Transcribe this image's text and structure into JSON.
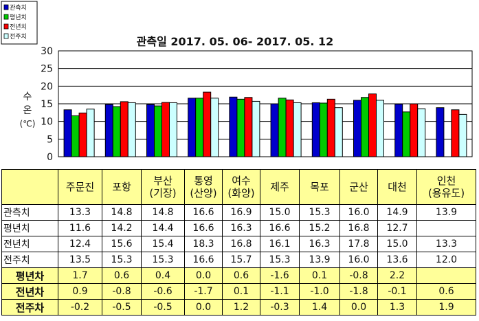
{
  "chart_data": {
    "type": "bar",
    "title": "관측일 2017. 05. 06- 2017. 05. 12",
    "ylabel_lines": [
      "수",
      "온",
      "(℃)"
    ],
    "ylim": [
      0,
      30
    ],
    "yticks": [
      "0",
      "5",
      "10",
      "15",
      "20",
      "25",
      "30"
    ],
    "grid": true,
    "legend_position": "top-left",
    "categories": [
      "주문진",
      "포항",
      "부산|(기장)",
      "통영|(산양)",
      "여수|(화양)",
      "제주",
      "목포",
      "군산",
      "대천",
      "인천|(용유도)"
    ],
    "series": [
      {
        "name": "관측치",
        "color": "#0000cc",
        "values": [
          13.3,
          14.8,
          14.8,
          16.6,
          16.9,
          15.0,
          15.3,
          16.0,
          14.9,
          13.9
        ]
      },
      {
        "name": "평년치",
        "color": "#00cc00",
        "values": [
          11.6,
          14.2,
          14.4,
          16.6,
          16.3,
          16.6,
          15.2,
          16.8,
          12.7,
          null
        ]
      },
      {
        "name": "전년치",
        "color": "#ff0000",
        "values": [
          12.4,
          15.6,
          15.4,
          18.3,
          16.8,
          16.1,
          16.3,
          17.8,
          15.0,
          13.3
        ]
      },
      {
        "name": "전주치",
        "color": "#ccffff",
        "values": [
          13.5,
          15.3,
          15.3,
          16.6,
          15.7,
          15.3,
          13.9,
          16.0,
          13.6,
          12.0
        ]
      }
    ]
  },
  "table": {
    "header": [
      "주문진",
      "포항",
      "부산|(기장)",
      "통영|(산양)",
      "여수|(화양)",
      "제주",
      "목포",
      "군산",
      "대천",
      "인천|(용유도)"
    ],
    "rows": [
      {
        "label": "관측치",
        "cls": "obs",
        "cells": [
          "13.3",
          "14.8",
          "14.8",
          "16.6",
          "16.9",
          "15.0",
          "15.3",
          "16.0",
          "14.9",
          "13.9"
        ]
      },
      {
        "label": "평년치",
        "cls": "obs",
        "cells": [
          "11.6",
          "14.2",
          "14.4",
          "16.6",
          "16.3",
          "16.6",
          "15.2",
          "16.8",
          "12.7",
          ""
        ]
      },
      {
        "label": "전년치",
        "cls": "obs",
        "cells": [
          "12.4",
          "15.6",
          "15.4",
          "18.3",
          "16.8",
          "16.1",
          "16.3",
          "17.8",
          "15.0",
          "13.3"
        ]
      },
      {
        "label": "전주치",
        "cls": "obs",
        "cells": [
          "13.5",
          "15.3",
          "15.3",
          "16.6",
          "15.7",
          "15.3",
          "13.9",
          "16.0",
          "13.6",
          "12.0"
        ]
      },
      {
        "label": "평년차",
        "cls": "diff",
        "cells": [
          "1.7",
          "0.6",
          "0.4",
          "0.0",
          "0.6",
          "-1.6",
          "0.1",
          "-0.8",
          "2.2",
          ""
        ]
      },
      {
        "label": "전년차",
        "cls": "diff",
        "cells": [
          "0.9",
          "-0.8",
          "-0.6",
          "-1.7",
          "0.1",
          "-1.1",
          "-1.0",
          "-1.8",
          "-0.1",
          "0.6"
        ]
      },
      {
        "label": "전주차",
        "cls": "diff",
        "cells": [
          "-0.2",
          "-0.5",
          "-0.5",
          "0.0",
          "1.2",
          "-0.3",
          "1.4",
          "0.0",
          "1.3",
          "1.9"
        ]
      }
    ]
  }
}
